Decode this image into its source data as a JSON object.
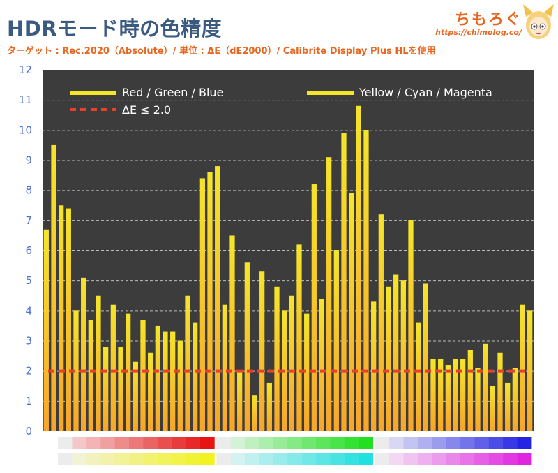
{
  "header": {
    "title": "HDRモード時の色精度",
    "subtitle": "ターゲット : Rec.2020（Absolute）/ 単位 : ΔE（dE2000）/ Calibrite Display Plus HLを使用",
    "brand_name": "ちもろぐ",
    "brand_url": "https://chimolog.co/"
  },
  "chart_data": {
    "type": "bar",
    "title": "HDRモード時の色精度",
    "ylim": [
      0,
      12
    ],
    "yticks": [
      0,
      1,
      2,
      3,
      4,
      5,
      6,
      7,
      8,
      9,
      10,
      11,
      12
    ],
    "grid": true,
    "legend": {
      "placement": "top",
      "series_rgb": "Red / Green / Blue",
      "series_ycm": "Yellow / Cyan / Magenta",
      "threshold": "ΔE ≤ 2.0"
    },
    "threshold": 2.0,
    "values": [
      6.7,
      9.5,
      7.5,
      7.4,
      4.0,
      5.1,
      3.7,
      4.5,
      2.8,
      4.2,
      2.8,
      3.9,
      2.3,
      3.7,
      2.6,
      3.5,
      3.3,
      3.3,
      3.0,
      4.5,
      3.6,
      8.4,
      8.6,
      8.8,
      4.2,
      6.5,
      2.0,
      5.6,
      1.2,
      5.3,
      1.6,
      4.8,
      4.0,
      4.5,
      6.2,
      3.9,
      8.2,
      4.4,
      9.1,
      6.0,
      9.9,
      7.9,
      10.8,
      10.0,
      4.3,
      7.2,
      4.8,
      5.2,
      5.0,
      7.0,
      3.6,
      4.9,
      2.4,
      2.4,
      2.2,
      2.4,
      2.4,
      2.7,
      2.1,
      2.9,
      1.5,
      2.6,
      1.6,
      2.1,
      4.2,
      4.0
    ],
    "colors": {
      "plot_bg": "#3c3c3c",
      "bar_top": "#f5e52a",
      "bar_bottom": "#f7a52a",
      "threshold_line": "#e8412a",
      "tick_labels": "#4a6ed8",
      "grid": "#e8e8e8"
    },
    "swatch_rows": [
      [
        "#ececec",
        "#f4c8c8",
        "#f2b4b4",
        "#f0a0a0",
        "#ee8c8c",
        "#ec7878",
        "#ea6464",
        "#e85050",
        "#e83c3c",
        "#e82828",
        "#e81414",
        "#ececec",
        "#d4f2d4",
        "#c0f0c0",
        "#acee ac",
        "#98ec98",
        "#84ea84",
        "#70e870",
        "#5ce65c",
        "#48e448",
        "#34e234",
        "#20e020",
        "#ececec",
        "#d8d8f4",
        "#c4c4f2",
        "#b0b0f0",
        "#9c9cee",
        "#8888ec",
        "#7474ea",
        "#6060e8",
        "#4c4ce6",
        "#3838e4",
        "#2424e2"
      ],
      [
        "#ececec",
        "#f2f2d4",
        "#f2f2c0",
        "#f2f2ac",
        "#f2f298",
        "#f2f284",
        "#f2f270",
        "#f2f25c",
        "#f2f248",
        "#f2f234",
        "#f2f220",
        "#ececec",
        "#d4f2f2",
        "#c0f0f0",
        "#acedee",
        "#98ecec",
        "#84eaea",
        "#70e8e8",
        "#5ce6e6",
        "#48e4e4",
        "#34e2e2",
        "#20e0e0",
        "#ececec",
        "#f2d8f2",
        "#f0c4f0",
        "#eeb0ee",
        "#ec9cec",
        "#ea88ea",
        "#e874e8",
        "#e660e6",
        "#e44ce4",
        "#e238e2",
        "#e024e0"
      ]
    ]
  }
}
